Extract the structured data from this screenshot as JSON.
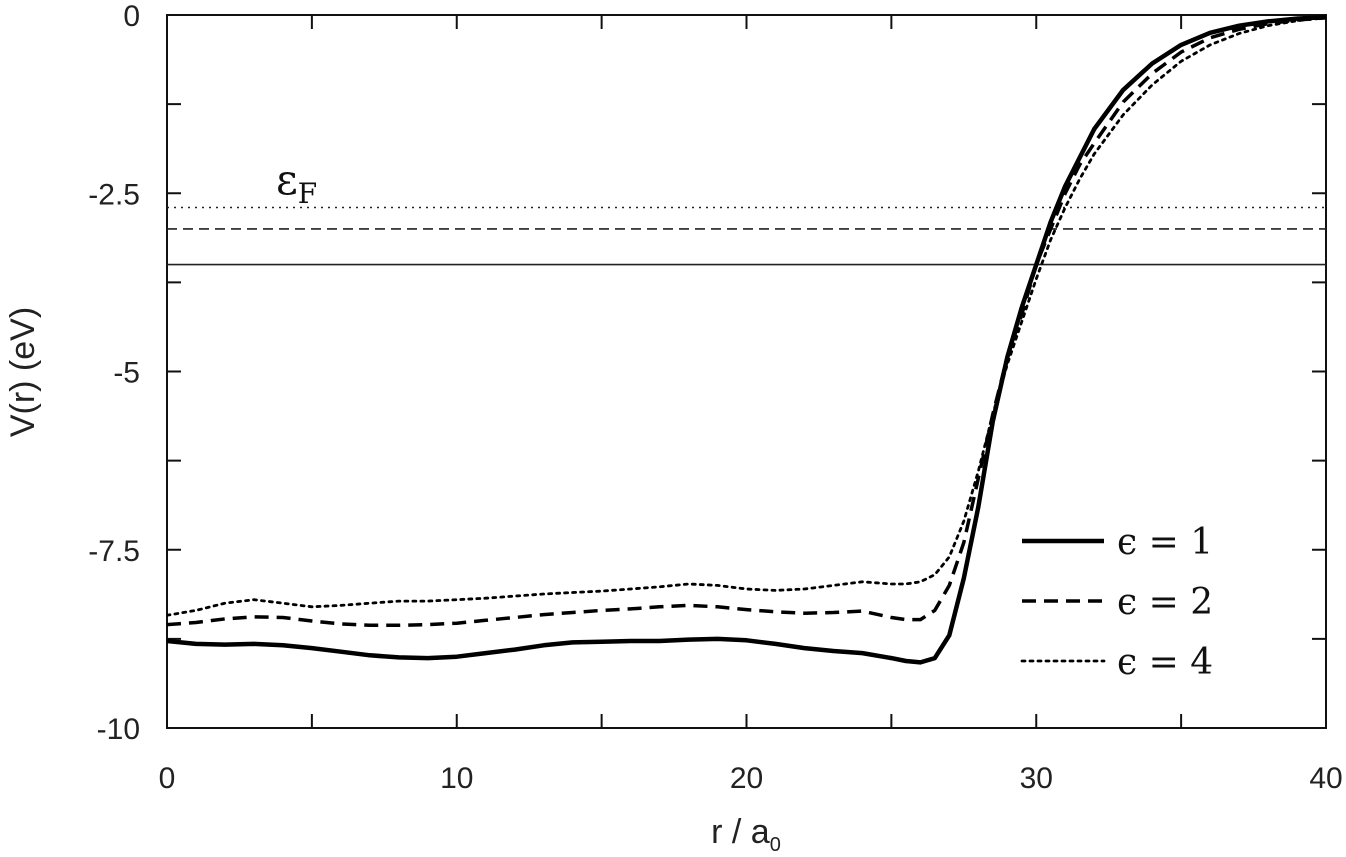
{
  "chart_data": {
    "type": "line",
    "title": "",
    "xlabel": "r / a",
    "xlabel_sub": "0",
    "ylabel": "V(r)  (eV)",
    "xlim": [
      0,
      40
    ],
    "ylim": [
      -10,
      0
    ],
    "x_ticks": [
      0,
      10,
      20,
      30,
      40
    ],
    "x_tick_labels": [
      "0",
      "10",
      "20",
      "30",
      "40"
    ],
    "x_minor_ticks": [
      5,
      15,
      25,
      35
    ],
    "y_ticks": [
      0,
      -2.5,
      -5,
      -7.5,
      -10
    ],
    "y_tick_labels": [
      "0",
      "-2.5",
      "-5",
      "-7.5",
      "-10"
    ],
    "y_minor_ticks": [
      -1.25,
      -3.75,
      -6.25,
      -8.75
    ],
    "grid": false,
    "legend_position": "bottom-right",
    "annotation": {
      "text": "ε",
      "sub": "F"
    },
    "fermi_levels": [
      {
        "series": "ϵ = 1",
        "y": -3.5,
        "style": "solid"
      },
      {
        "series": "ϵ = 2",
        "y": -3.0,
        "style": "dashed"
      },
      {
        "series": "ϵ = 4",
        "y": -2.7,
        "style": "dotted"
      }
    ],
    "series": [
      {
        "name": "ϵ = 1",
        "style": "solid",
        "x": [
          0,
          1,
          2,
          3,
          4,
          5,
          6,
          7,
          8,
          9,
          10,
          11,
          12,
          13,
          14,
          15,
          16,
          17,
          18,
          19,
          20,
          21,
          22,
          23,
          24,
          25,
          25.5,
          26,
          26.5,
          27,
          27.5,
          28,
          28.5,
          29,
          29.5,
          30,
          30.5,
          31,
          31.5,
          32,
          33,
          34,
          35,
          36,
          37,
          38,
          39,
          40
        ],
        "y": [
          -8.78,
          -8.82,
          -8.83,
          -8.82,
          -8.84,
          -8.88,
          -8.93,
          -8.98,
          -9.01,
          -9.02,
          -9.0,
          -8.95,
          -8.9,
          -8.84,
          -8.8,
          -8.79,
          -8.78,
          -8.78,
          -8.76,
          -8.75,
          -8.77,
          -8.82,
          -8.88,
          -8.92,
          -8.95,
          -9.02,
          -9.06,
          -9.08,
          -9.02,
          -8.7,
          -7.9,
          -6.9,
          -5.7,
          -4.8,
          -4.1,
          -3.5,
          -2.9,
          -2.4,
          -2.0,
          -1.6,
          -1.05,
          -0.68,
          -0.42,
          -0.25,
          -0.15,
          -0.09,
          -0.05,
          -0.03
        ]
      },
      {
        "name": "ϵ = 2",
        "style": "dashed",
        "x": [
          0,
          1,
          2,
          3,
          4,
          5,
          6,
          7,
          8,
          9,
          10,
          11,
          12,
          13,
          14,
          15,
          16,
          17,
          18,
          19,
          20,
          21,
          22,
          23,
          24,
          25,
          25.5,
          26,
          26.5,
          27,
          27.5,
          28,
          28.5,
          29,
          29.5,
          30,
          30.5,
          31,
          31.5,
          32,
          33,
          34,
          35,
          36,
          37,
          38,
          39,
          40
        ],
        "y": [
          -8.55,
          -8.52,
          -8.47,
          -8.44,
          -8.45,
          -8.5,
          -8.54,
          -8.56,
          -8.56,
          -8.55,
          -8.53,
          -8.49,
          -8.45,
          -8.41,
          -8.38,
          -8.35,
          -8.33,
          -8.3,
          -8.28,
          -8.3,
          -8.34,
          -8.37,
          -8.39,
          -8.38,
          -8.36,
          -8.45,
          -8.48,
          -8.48,
          -8.35,
          -8.0,
          -7.4,
          -6.5,
          -5.6,
          -4.8,
          -4.2,
          -3.5,
          -3.0,
          -2.5,
          -2.1,
          -1.8,
          -1.22,
          -0.82,
          -0.52,
          -0.32,
          -0.2,
          -0.12,
          -0.07,
          -0.04
        ]
      },
      {
        "name": "ϵ = 4",
        "style": "dotted",
        "x": [
          0,
          1,
          2,
          3,
          4,
          5,
          6,
          7,
          8,
          9,
          10,
          11,
          12,
          13,
          14,
          15,
          16,
          17,
          18,
          19,
          20,
          21,
          22,
          23,
          24,
          25,
          25.5,
          26,
          26.5,
          27,
          27.5,
          28,
          28.5,
          29,
          29.5,
          30,
          30.5,
          31,
          31.5,
          32,
          33,
          34,
          35,
          36,
          37,
          38,
          39,
          40
        ],
        "y": [
          -8.42,
          -8.35,
          -8.25,
          -8.2,
          -8.25,
          -8.3,
          -8.28,
          -8.25,
          -8.22,
          -8.22,
          -8.2,
          -8.18,
          -8.15,
          -8.12,
          -8.1,
          -8.08,
          -8.05,
          -8.02,
          -7.98,
          -8.0,
          -8.05,
          -8.07,
          -8.05,
          -8.0,
          -7.95,
          -7.98,
          -7.98,
          -7.95,
          -7.85,
          -7.6,
          -7.1,
          -6.4,
          -5.6,
          -4.9,
          -4.3,
          -3.7,
          -3.15,
          -2.7,
          -2.3,
          -1.95,
          -1.4,
          -0.98,
          -0.65,
          -0.42,
          -0.26,
          -0.15,
          -0.08,
          -0.04
        ]
      }
    ]
  }
}
